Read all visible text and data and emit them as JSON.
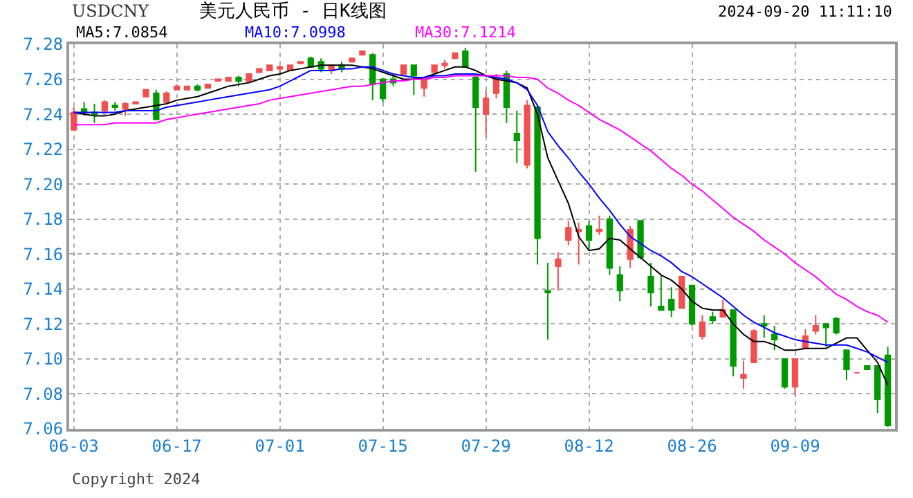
{
  "chart_data": {
    "type": "candlestick",
    "subtitle": "USDCNY",
    "title": "美元人民币 - 日K线图",
    "annotations": [
      "2024-09-20 11:11:10",
      "Copyright 2024"
    ],
    "categories": [
      "06-03",
      null,
      null,
      null,
      null,
      null,
      null,
      null,
      null,
      null,
      "06-17",
      null,
      null,
      null,
      null,
      null,
      null,
      null,
      null,
      null,
      "07-01",
      null,
      null,
      null,
      null,
      null,
      null,
      null,
      null,
      null,
      "07-15",
      null,
      null,
      null,
      null,
      null,
      null,
      null,
      null,
      null,
      "07-29",
      null,
      null,
      null,
      null,
      null,
      null,
      null,
      null,
      null,
      "08-12",
      null,
      null,
      null,
      null,
      null,
      null,
      null,
      null,
      null,
      "08-26",
      null,
      null,
      null,
      null,
      null,
      null,
      null,
      null,
      null,
      "09-09",
      null,
      null,
      null,
      null,
      null,
      null,
      null,
      null,
      null
    ],
    "ohlc": [
      [
        7.231,
        7.244,
        7.231,
        7.241
      ],
      [
        7.243,
        7.247,
        7.239,
        7.241
      ],
      [
        7.241,
        7.246,
        7.235,
        7.24
      ],
      [
        7.242,
        7.248,
        7.241,
        7.247
      ],
      [
        7.245,
        7.247,
        7.242,
        7.244
      ],
      [
        7.243,
        7.247,
        7.239,
        7.246
      ],
      [
        7.246,
        7.247,
        7.246,
        7.247
      ],
      [
        7.25,
        7.254,
        7.25,
        7.254
      ],
      [
        7.252,
        7.254,
        7.237,
        7.237
      ],
      [
        7.247,
        7.253,
        7.246,
        7.252
      ],
      [
        7.254,
        7.257,
        7.254,
        7.256
      ],
      [
        7.254,
        7.256,
        7.254,
        7.256
      ],
      [
        7.256,
        7.257,
        7.253,
        7.254
      ],
      [
        7.255,
        7.257,
        7.255,
        7.257
      ],
      [
        7.259,
        7.26,
        7.259,
        7.26
      ],
      [
        7.259,
        7.261,
        7.259,
        7.261
      ],
      [
        7.261,
        7.262,
        7.256,
        7.259
      ],
      [
        7.259,
        7.263,
        7.259,
        7.263
      ],
      [
        7.264,
        7.266,
        7.264,
        7.266
      ],
      [
        7.265,
        7.268,
        7.265,
        7.268
      ],
      [
        7.266,
        7.268,
        7.262,
        7.267
      ],
      [
        7.265,
        7.268,
        7.265,
        7.268
      ],
      [
        7.269,
        7.27,
        7.269,
        7.27
      ],
      [
        7.272,
        7.273,
        7.267,
        7.267
      ],
      [
        7.27,
        7.272,
        7.264,
        7.266
      ],
      [
        7.265,
        7.268,
        7.263,
        7.268
      ],
      [
        7.268,
        7.27,
        7.264,
        7.266
      ],
      [
        7.27,
        7.272,
        7.27,
        7.272
      ],
      [
        7.274,
        7.276,
        7.274,
        7.276
      ],
      [
        7.274,
        7.275,
        7.248,
        7.257
      ],
      [
        7.26,
        7.26,
        7.247,
        7.249
      ],
      [
        7.26,
        7.262,
        7.256,
        7.258
      ],
      [
        7.263,
        7.268,
        7.263,
        7.268
      ],
      [
        7.268,
        7.268,
        7.251,
        7.262
      ],
      [
        7.255,
        7.261,
        7.25,
        7.261
      ],
      [
        7.264,
        7.268,
        7.264,
        7.268
      ],
      [
        7.268,
        7.271,
        7.266,
        7.269
      ],
      [
        7.272,
        7.275,
        7.272,
        7.275
      ],
      [
        7.276,
        7.278,
        7.267,
        7.267
      ],
      [
        7.261,
        7.262,
        7.207,
        7.244
      ],
      [
        7.24,
        7.254,
        7.227,
        7.249
      ],
      [
        7.252,
        7.263,
        7.249,
        7.261
      ],
      [
        7.263,
        7.265,
        7.235,
        7.244
      ],
      [
        7.229,
        7.242,
        7.212,
        7.225
      ],
      [
        7.211,
        7.248,
        7.209,
        7.245
      ],
      [
        7.244,
        7.245,
        7.154,
        7.169
      ],
      [
        7.139,
        7.155,
        7.111,
        7.138
      ],
      [
        7.153,
        7.161,
        7.139,
        7.157
      ],
      [
        7.168,
        7.179,
        7.165,
        7.175
      ],
      [
        7.173,
        7.178,
        7.154,
        7.174
      ],
      [
        7.176,
        7.179,
        7.162,
        7.168
      ],
      [
        7.173,
        7.182,
        7.171,
        7.174
      ],
      [
        7.18,
        7.182,
        7.148,
        7.152
      ],
      [
        7.148,
        7.153,
        7.133,
        7.139
      ],
      [
        7.157,
        7.176,
        7.152,
        7.174
      ],
      [
        7.179,
        7.179,
        7.157,
        7.158
      ],
      [
        7.147,
        7.155,
        7.13,
        7.138
      ],
      [
        7.13,
        7.148,
        7.128,
        7.128
      ],
      [
        7.134,
        7.141,
        7.124,
        7.128
      ],
      [
        7.129,
        7.147,
        7.129,
        7.147
      ],
      [
        7.142,
        7.142,
        7.119,
        7.12
      ],
      [
        7.113,
        7.125,
        7.111,
        7.121
      ],
      [
        7.124,
        7.127,
        7.12,
        7.122
      ],
      [
        7.124,
        7.134,
        7.124,
        7.128
      ],
      [
        7.128,
        7.128,
        7.09,
        7.096
      ],
      [
        7.089,
        7.099,
        7.083,
        7.091
      ],
      [
        7.098,
        7.117,
        7.098,
        7.116
      ],
      [
        7.12,
        7.125,
        7.112,
        7.119
      ],
      [
        7.114,
        7.119,
        7.105,
        7.111
      ],
      [
        7.1,
        7.1,
        7.083,
        7.084
      ],
      [
        7.084,
        7.1,
        7.079,
        7.1
      ],
      [
        7.106,
        7.117,
        7.106,
        7.113
      ],
      [
        7.116,
        7.125,
        7.114,
        7.119
      ],
      [
        7.12,
        7.12,
        7.107,
        7.118
      ],
      [
        7.123,
        7.124,
        7.114,
        7.115
      ],
      [
        7.105,
        7.105,
        7.088,
        7.094
      ],
      [
        7.092,
        7.092,
        7.092,
        7.092
      ],
      [
        7.096,
        7.096,
        7.094,
        7.094
      ],
      [
        7.096,
        7.096,
        7.069,
        7.077
      ],
      [
        7.102,
        7.107,
        7.061,
        7.062
      ]
    ],
    "colors": [
      "#f05050",
      "#009900",
      "#009900",
      "#f05050",
      "#009900",
      "#f05050",
      "#f05050",
      "#f05050",
      "#009900",
      "#f05050",
      "#f05050",
      "#f05050",
      "#009900",
      "#f05050",
      "#f05050",
      "#f05050",
      "#009900",
      "#f05050",
      "#f05050",
      "#f05050",
      "#f05050",
      "#f05050",
      "#f05050",
      "#009900",
      "#009900",
      "#f05050",
      "#009900",
      "#f05050",
      "#f05050",
      "#009900",
      "#009900",
      "#009900",
      "#f05050",
      "#009900",
      "#f05050",
      "#f05050",
      "#f05050",
      "#f05050",
      "#009900",
      "#009900",
      "#f05050",
      "#f05050",
      "#009900",
      "#009900",
      "#f05050",
      "#009900",
      "#009900",
      "#f05050",
      "#f05050",
      "#f05050",
      "#009900",
      "#f05050",
      "#009900",
      "#009900",
      "#f05050",
      "#009900",
      "#009900",
      "#009900",
      "#009900",
      "#f05050",
      "#009900",
      "#f05050",
      "#009900",
      "#f05050",
      "#009900",
      "#f05050",
      "#f05050",
      "#009900",
      "#009900",
      "#009900",
      "#f05050",
      "#f05050",
      "#f05050",
      "#009900",
      "#009900",
      "#009900",
      "#f05050",
      "#009900",
      "#009900",
      "#009900"
    ],
    "series": [
      {
        "name": "MA5:7.0854",
        "type": "line",
        "color": "#000000",
        "values": [
          7.241,
          7.24,
          7.239,
          7.239,
          7.24,
          7.242,
          7.243,
          7.244,
          7.245,
          7.246,
          7.248,
          7.249,
          7.25,
          7.252,
          7.254,
          7.256,
          7.257,
          7.258,
          7.26,
          7.262,
          7.263,
          7.265,
          7.266,
          7.267,
          7.268,
          7.268,
          7.268,
          7.268,
          7.267,
          7.266,
          7.264,
          7.262,
          7.26,
          7.26,
          7.261,
          7.263,
          7.265,
          7.267,
          7.267,
          7.265,
          7.262,
          7.26,
          7.259,
          7.258,
          7.255,
          7.24,
          7.215,
          7.202,
          7.189,
          7.17,
          7.162,
          7.163,
          7.169,
          7.168,
          7.163,
          7.158,
          7.153,
          7.148,
          7.145,
          7.14,
          7.133,
          7.129,
          7.128,
          7.128,
          7.12,
          7.114,
          7.11,
          7.11,
          7.108,
          7.105,
          7.105,
          7.106,
          7.106,
          7.106,
          7.109,
          7.112,
          7.112,
          7.105,
          7.098,
          7.085
        ]
      },
      {
        "name": "MA10:7.0998",
        "type": "line",
        "color": "#0000ff",
        "values": [
          7.241,
          7.241,
          7.241,
          7.241,
          7.241,
          7.242,
          7.242,
          7.242,
          7.242,
          7.244,
          7.245,
          7.246,
          7.247,
          7.248,
          7.249,
          7.25,
          7.251,
          7.252,
          7.253,
          7.254,
          7.256,
          7.259,
          7.262,
          7.265,
          7.265,
          7.265,
          7.266,
          7.266,
          7.267,
          7.267,
          7.265,
          7.263,
          7.262,
          7.261,
          7.261,
          7.262,
          7.262,
          7.263,
          7.263,
          7.263,
          7.262,
          7.261,
          7.26,
          7.258,
          7.254,
          7.245,
          7.23,
          7.222,
          7.215,
          7.207,
          7.2,
          7.192,
          7.185,
          7.177,
          7.17,
          7.166,
          7.162,
          7.159,
          7.155,
          7.15,
          7.147,
          7.143,
          7.139,
          7.135,
          7.13,
          7.125,
          7.121,
          7.118,
          7.115,
          7.113,
          7.111,
          7.11,
          7.109,
          7.108,
          7.108,
          7.108,
          7.106,
          7.104,
          7.101,
          7.098
        ]
      },
      {
        "name": "MA30:7.1214",
        "type": "line",
        "color": "#ff00ff",
        "values": [
          7.234,
          7.234,
          7.234,
          7.234,
          7.235,
          7.235,
          7.235,
          7.235,
          7.235,
          7.237,
          7.238,
          7.239,
          7.24,
          7.241,
          7.242,
          7.243,
          7.244,
          7.245,
          7.246,
          7.248,
          7.249,
          7.25,
          7.251,
          7.252,
          7.253,
          7.254,
          7.255,
          7.256,
          7.256,
          7.257,
          7.258,
          7.259,
          7.259,
          7.26,
          7.26,
          7.261,
          7.261,
          7.262,
          7.262,
          7.262,
          7.262,
          7.262,
          7.262,
          7.261,
          7.261,
          7.26,
          7.255,
          7.252,
          7.248,
          7.245,
          7.241,
          7.237,
          7.234,
          7.231,
          7.227,
          7.223,
          7.219,
          7.214,
          7.209,
          7.205,
          7.2,
          7.196,
          7.191,
          7.186,
          7.181,
          7.177,
          7.173,
          7.168,
          7.164,
          7.16,
          7.155,
          7.151,
          7.147,
          7.142,
          7.137,
          7.134,
          7.13,
          7.127,
          7.125,
          7.121
        ]
      }
    ],
    "ylim": [
      7.06,
      7.28
    ],
    "yticks": [
      7.06,
      7.08,
      {
        "value": 7.1,
        "label": "7.10"
      },
      7.12,
      7.14,
      7.16,
      7.18,
      {
        "value": 7.2,
        "label": "7.20"
      },
      7.22,
      7.24,
      7.26,
      7.28
    ],
    "grid": true,
    "tick_labels": true
  }
}
